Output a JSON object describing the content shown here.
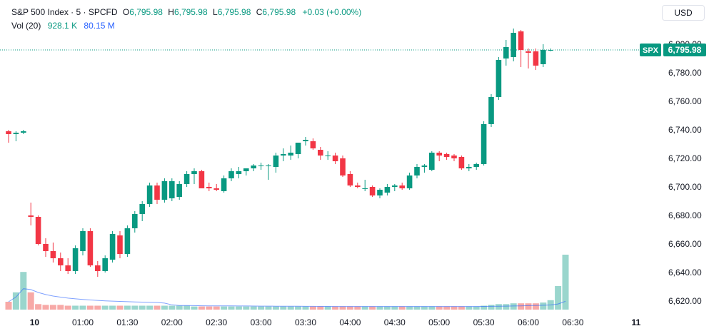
{
  "legend": {
    "symbol": "S&P 500 Index · 5 · SPCFD",
    "o_label": "O",
    "o": "6,795.98",
    "h_label": "H",
    "h": "6,795.98",
    "l_label": "L",
    "l": "6,795.98",
    "c_label": "C",
    "c": "6,795.98",
    "change": "+0.03 (+0.00%)",
    "vol_label": "Vol (20)",
    "vol_value": "928.1 K",
    "vol_ma": "80.15 M"
  },
  "currency": "USD",
  "price_tag": {
    "symbol": "SPX",
    "value": "6,795.98"
  },
  "colors": {
    "up": "#089981",
    "down": "#f23645",
    "vol_up": "#9ad6cd",
    "vol_down": "#f7a9a7",
    "vol_ma": "#2962ff"
  },
  "chart_data": {
    "type": "candlestick",
    "ylim": [
      6612,
      6812
    ],
    "y_ticks": [
      "6,620.00",
      "6,640.00",
      "6,660.00",
      "6,680.00",
      "6,700.00",
      "6,720.00",
      "6,740.00",
      "6,760.00",
      "6,780.00",
      "6,800.00"
    ],
    "y_tick_values": [
      6620,
      6640,
      6660,
      6680,
      6700,
      6720,
      6740,
      6760,
      6780,
      6800
    ],
    "x_ticks": [
      "10",
      "01:00",
      "01:30",
      "02:00",
      "02:30",
      "03:00",
      "03:30",
      "04:00",
      "04:30",
      "05:00",
      "05:30",
      "06:00",
      "06:30",
      "11"
    ],
    "x_tick_index": [
      3.5,
      10,
      16,
      22,
      28,
      34,
      40,
      46,
      52,
      58,
      64,
      70,
      76,
      84.5
    ],
    "candles": [
      [
        6739,
        6740,
        6731,
        6737
      ],
      [
        6737,
        6739,
        6732,
        6738
      ],
      [
        6738,
        6740,
        6737,
        6739
      ],
      [
        6680,
        6689,
        6673,
        6679
      ],
      [
        6679,
        6680,
        6659,
        6660
      ],
      [
        6660,
        6664,
        6651,
        6655
      ],
      [
        6655,
        6661,
        6647,
        6650
      ],
      [
        6650,
        6654,
        6641,
        6645
      ],
      [
        6645,
        6650,
        6639,
        6641
      ],
      [
        6641,
        6659,
        6639,
        6657
      ],
      [
        6655,
        6671,
        6652,
        6669
      ],
      [
        6669,
        6671,
        6644,
        6645
      ],
      [
        6645,
        6648,
        6637,
        6641
      ],
      [
        6641,
        6652,
        6640,
        6650
      ],
      [
        6649,
        6669,
        6647,
        6667
      ],
      [
        6666,
        6669,
        6650,
        6653
      ],
      [
        6653,
        6673,
        6651,
        6671
      ],
      [
        6671,
        6683,
        6668,
        6681
      ],
      [
        6681,
        6690,
        6676,
        6688
      ],
      [
        6688,
        6703,
        6686,
        6701
      ],
      [
        6701,
        6703,
        6688,
        6691
      ],
      [
        6691,
        6706,
        6689,
        6704
      ],
      [
        6692,
        6706,
        6690,
        6704
      ],
      [
        6693,
        6704,
        6691,
        6702
      ],
      [
        6702,
        6711,
        6700,
        6709
      ],
      [
        6709,
        6713,
        6702,
        6711
      ],
      [
        6711,
        6712,
        6699,
        6699
      ],
      [
        6700,
        6703,
        6697,
        6699
      ],
      [
        6699,
        6702,
        6697,
        6698
      ],
      [
        6697,
        6708,
        6696,
        6706
      ],
      [
        6706,
        6713,
        6704,
        6711
      ],
      [
        6709,
        6714,
        6706,
        6711
      ],
      [
        6711,
        6713,
        6708,
        6713
      ],
      [
        6713,
        6716,
        6711,
        6715
      ],
      [
        6715,
        6717,
        6712,
        6715
      ],
      [
        6715,
        6716,
        6705,
        6715
      ],
      [
        6714,
        6724,
        6710,
        6722
      ],
      [
        6722,
        6727,
        6718,
        6723
      ],
      [
        6722,
        6729,
        6719,
        6724
      ],
      [
        6723,
        6731,
        6720,
        6731
      ],
      [
        6732,
        6735,
        6729,
        6733
      ],
      [
        6732,
        6734,
        6726,
        6727
      ],
      [
        6726,
        6728,
        6719,
        6722
      ],
      [
        6722,
        6725,
        6719,
        6722
      ],
      [
        6722,
        6724,
        6716,
        6718
      ],
      [
        6720,
        6722,
        6707,
        6708
      ],
      [
        6709,
        6711,
        6700,
        6701
      ],
      [
        6701,
        6703,
        6699,
        6700
      ],
      [
        6699,
        6705,
        6697,
        6699
      ],
      [
        6700,
        6701,
        6693,
        6694
      ],
      [
        6694,
        6699,
        6692,
        6698
      ],
      [
        6696,
        6702,
        6694,
        6700
      ],
      [
        6700,
        6702,
        6697,
        6701
      ],
      [
        6701,
        6703,
        6698,
        6699
      ],
      [
        6699,
        6710,
        6698,
        6708
      ],
      [
        6708,
        6716,
        6706,
        6714
      ],
      [
        6714,
        6716,
        6710,
        6715
      ],
      [
        6712,
        6725,
        6711,
        6724
      ],
      [
        6724,
        6725,
        6718,
        6722
      ],
      [
        6723,
        6724,
        6719,
        6721
      ],
      [
        6722,
        6723,
        6718,
        6720
      ],
      [
        6721,
        6722,
        6712,
        6713
      ],
      [
        6713,
        6716,
        6711,
        6714
      ],
      [
        6714,
        6717,
        6712,
        6716
      ],
      [
        6716,
        6746,
        6715,
        6744
      ],
      [
        6744,
        6765,
        6742,
        6763
      ],
      [
        6763,
        6791,
        6761,
        6789
      ],
      [
        6790,
        6803,
        6785,
        6798
      ],
      [
        6791,
        6811,
        6788,
        6808
      ],
      [
        6809,
        6810,
        6784,
        6796
      ],
      [
        6795,
        6797,
        6783,
        6794
      ],
      [
        6795,
        6797,
        6782,
        6785
      ],
      [
        6786,
        6800,
        6784,
        6796
      ],
      [
        6796,
        6797,
        6795,
        6796
      ]
    ],
    "volume_max": 100,
    "volume_relative": [
      10,
      22,
      48,
      22,
      7,
      6,
      6,
      6,
      5,
      5,
      5,
      5,
      5,
      5,
      5,
      5,
      5,
      5,
      5,
      5,
      5,
      5,
      5,
      5,
      5,
      4,
      4,
      4,
      4,
      4,
      4,
      4,
      4,
      4,
      4,
      4,
      4,
      4,
      4,
      4,
      4,
      4,
      4,
      4,
      4,
      4,
      4,
      4,
      4,
      4,
      4,
      4,
      4,
      4,
      4,
      4,
      4,
      4,
      4,
      4,
      4,
      4,
      4,
      4,
      5,
      6,
      7,
      7,
      8,
      8,
      8,
      8,
      9,
      12,
      30,
      70
    ]
  }
}
